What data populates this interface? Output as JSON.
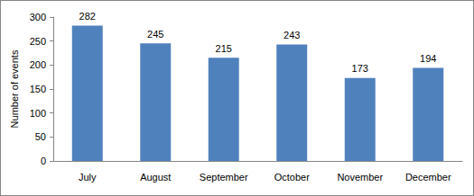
{
  "chart_data": {
    "type": "bar",
    "categories": [
      "July",
      "August",
      "September",
      "October",
      "November",
      "December"
    ],
    "values": [
      282,
      245,
      215,
      243,
      173,
      194
    ],
    "color": "#4f81bd",
    "y_label": "Number of events",
    "ylim": [
      0,
      300
    ],
    "yticks": [
      0,
      50,
      100,
      150,
      200,
      250,
      300
    ],
    "grid": false,
    "data_labels": true
  }
}
